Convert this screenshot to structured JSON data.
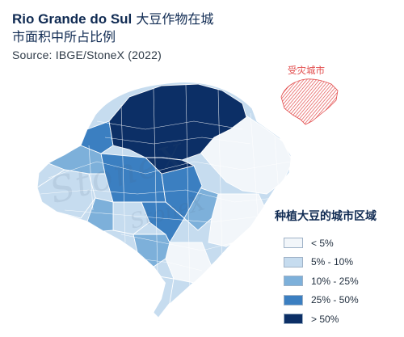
{
  "title": {
    "en": "Rio Grande do Sul",
    "zh_line1": "大豆作物在城",
    "zh_line2": "市面积中所占比例"
  },
  "source": "Source: IBGE/StoneX (2022)",
  "inset": {
    "label": "受灾城市",
    "color": "#e24c4c"
  },
  "watermark": {
    "text1": "StoneX",
    "text2": "StoneX"
  },
  "legend": {
    "title": "种植大豆的城市区域",
    "items": [
      {
        "label": "< 5%",
        "color": "#f2f6fa"
      },
      {
        "label": "5% - 10%",
        "color": "#c6dcef"
      },
      {
        "label": "10% - 25%",
        "color": "#7db0da"
      },
      {
        "label": "25% - 50%",
        "color": "#3b7fc1"
      },
      {
        "label": "> 50%",
        "color": "#0c2f66"
      }
    ]
  }
}
